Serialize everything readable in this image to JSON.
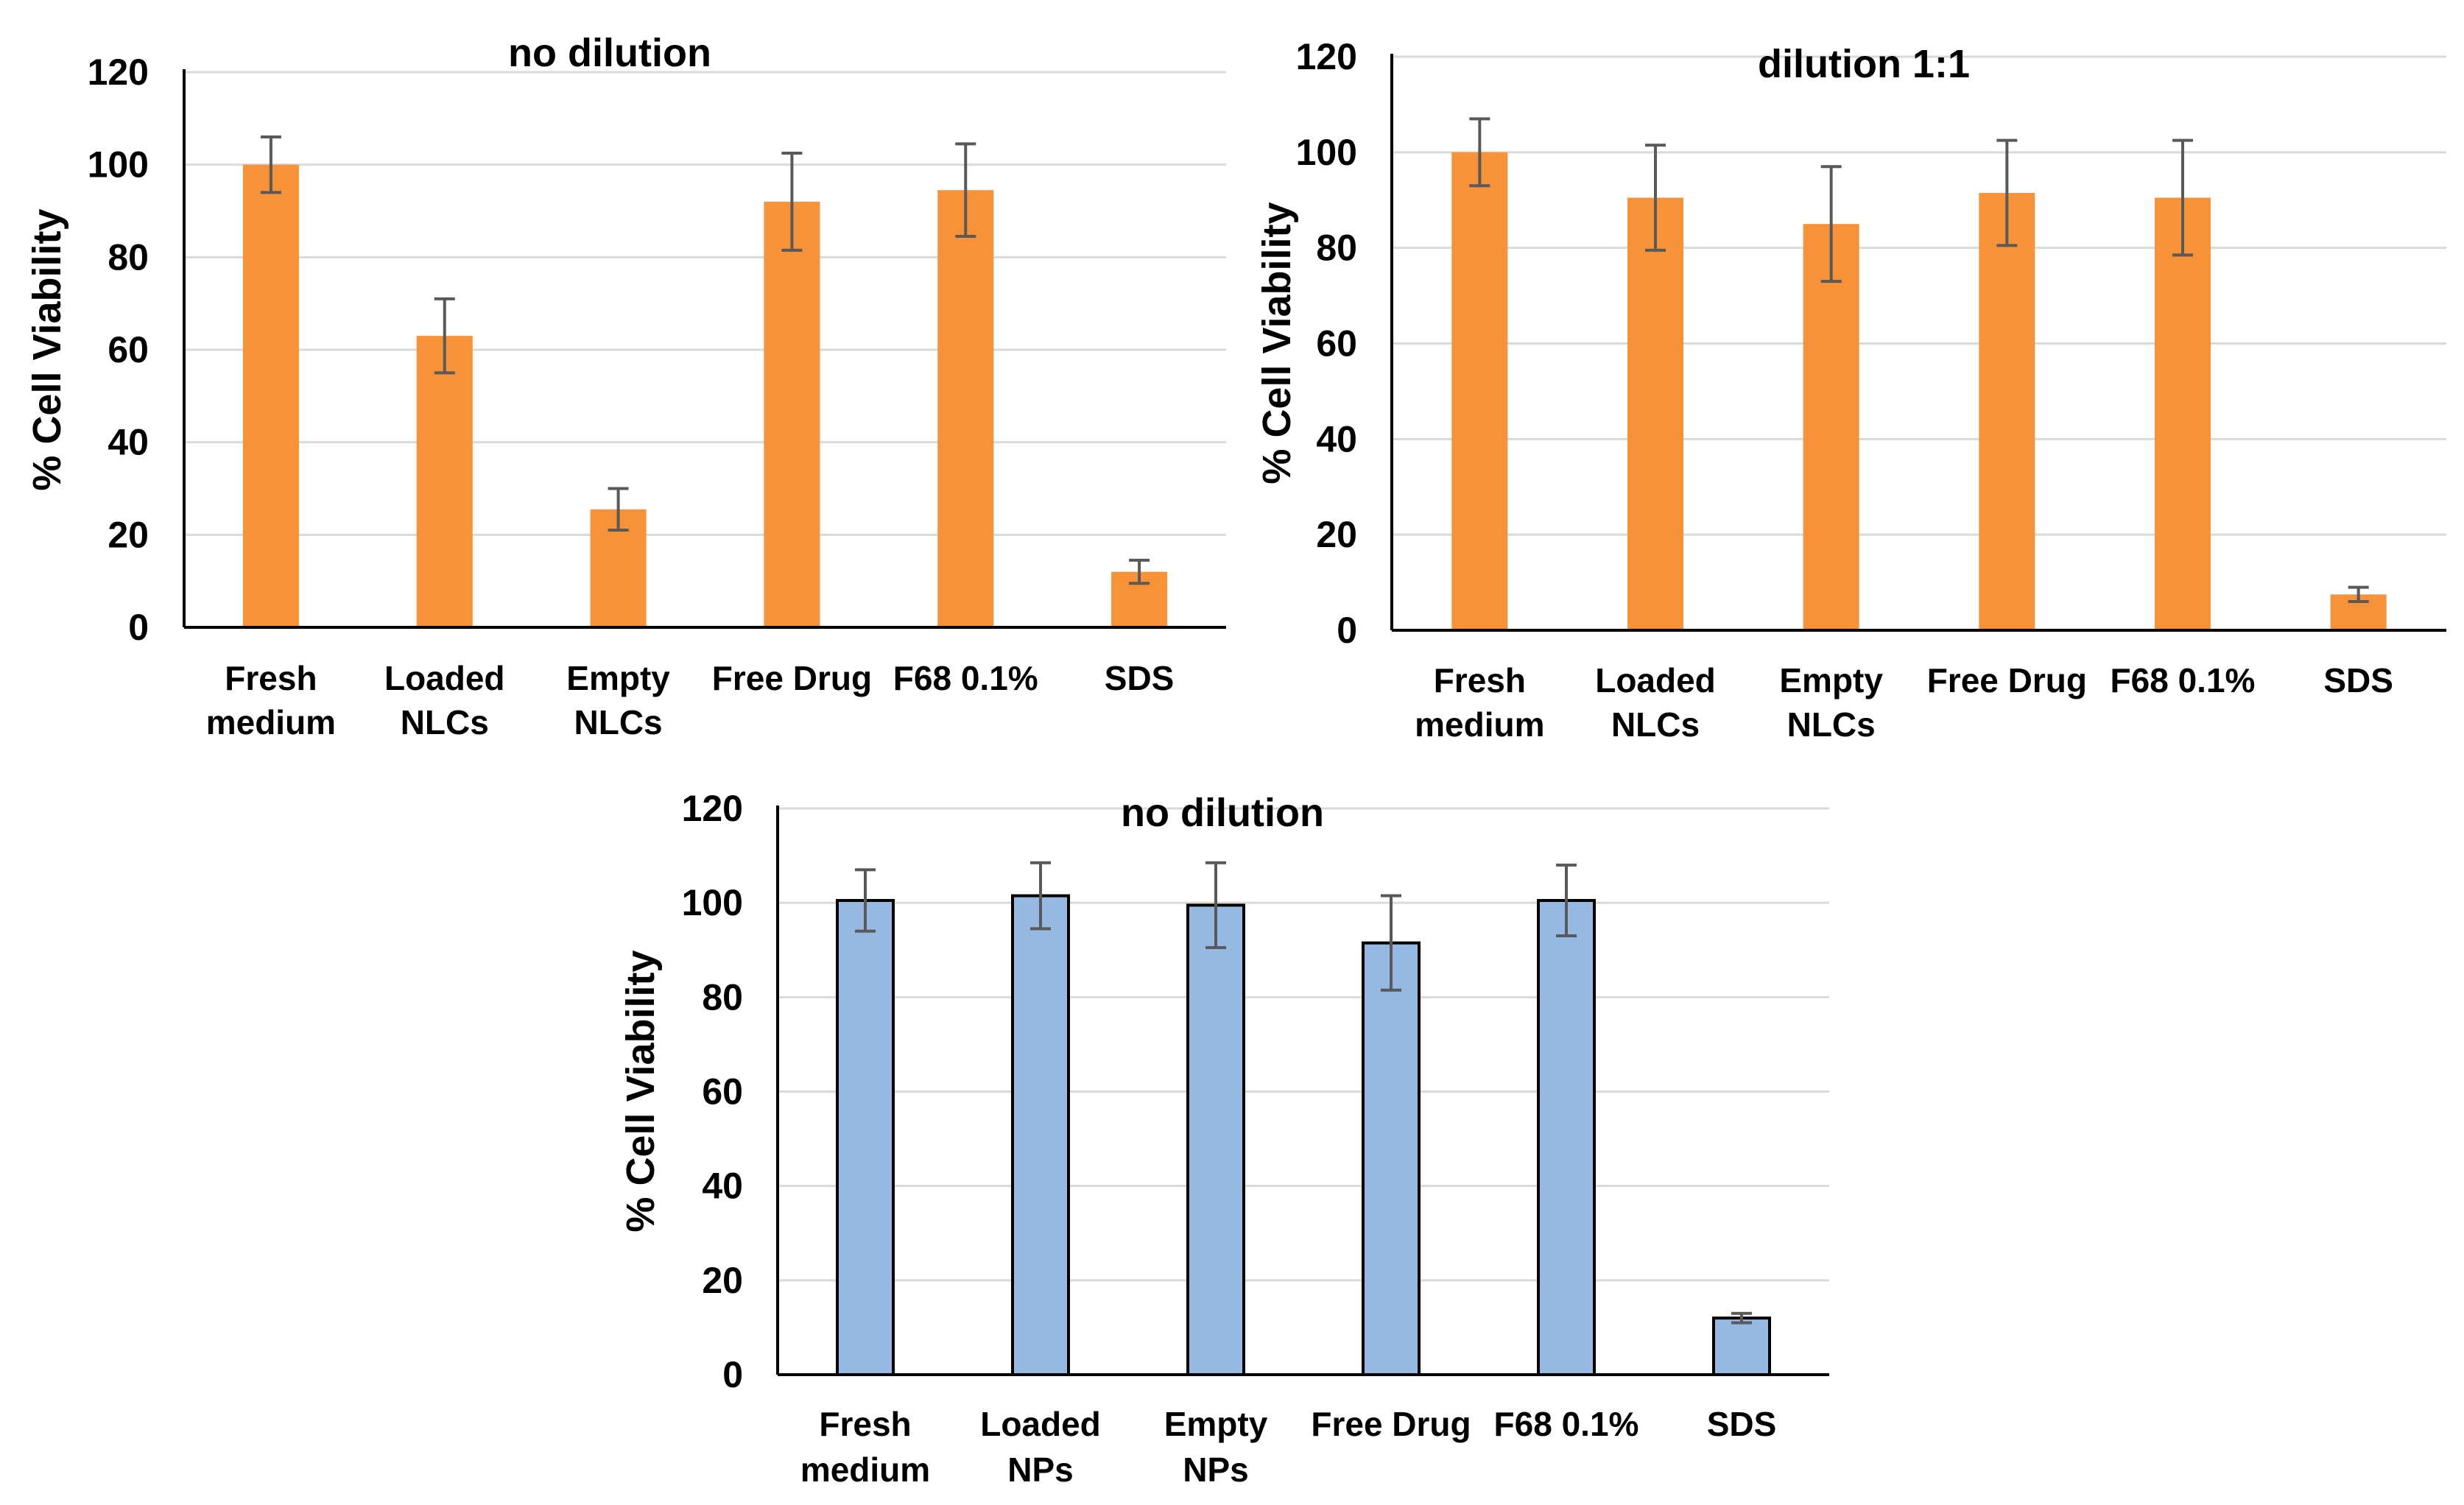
{
  "chart_data": [
    {
      "type": "bar",
      "title": "no dilution",
      "ylabel": "% Cell Viability",
      "xlabel": "",
      "ylim": [
        0,
        120
      ],
      "yticks": [
        0,
        20,
        40,
        60,
        80,
        100,
        120
      ],
      "grid": true,
      "bar_color": "#f79239",
      "categories": [
        [
          "Fresh",
          "medium"
        ],
        [
          "Loaded",
          "NLCs"
        ],
        [
          "Empty",
          "NLCs"
        ],
        [
          "Free Drug"
        ],
        [
          "F68 0.1%"
        ],
        [
          "SDS"
        ]
      ],
      "values": [
        100,
        63,
        25.5,
        92,
        94.5,
        12
      ],
      "errors": [
        6,
        8,
        4.5,
        10.5,
        10,
        2.5
      ]
    },
    {
      "type": "bar",
      "title": "dilution 1:1",
      "ylabel": "% Cell Viability",
      "xlabel": "",
      "ylim": [
        0,
        120
      ],
      "yticks": [
        0,
        20,
        40,
        60,
        80,
        100,
        120
      ],
      "grid": true,
      "bar_color": "#f79239",
      "categories": [
        [
          "Fresh",
          "medium"
        ],
        [
          "Loaded",
          "NLCs"
        ],
        [
          "Empty",
          "NLCs"
        ],
        [
          "Free Drug"
        ],
        [
          "F68 0.1%"
        ],
        [
          "SDS"
        ]
      ],
      "values": [
        100,
        90.5,
        85,
        91.5,
        90.5,
        7.5
      ],
      "errors": [
        7,
        11,
        12,
        11,
        12,
        1.5
      ]
    },
    {
      "type": "bar",
      "title": "no dilution",
      "ylabel": "% Cell Viability",
      "xlabel": "",
      "ylim": [
        0,
        120
      ],
      "yticks": [
        0,
        20,
        40,
        60,
        80,
        100,
        120
      ],
      "grid": true,
      "bar_color": "#95b9e3",
      "bar_outline": "#000000",
      "categories": [
        [
          "Fresh",
          "medium"
        ],
        [
          "Loaded",
          "NPs"
        ],
        [
          "Empty",
          "NPs"
        ],
        [
          "Free Drug"
        ],
        [
          "F68 0.1%"
        ],
        [
          "SDS"
        ]
      ],
      "values": [
        100.5,
        101.5,
        99.5,
        91.5,
        100.5,
        12
      ],
      "errors": [
        6.5,
        7,
        9,
        10,
        7.5,
        1
      ]
    }
  ]
}
